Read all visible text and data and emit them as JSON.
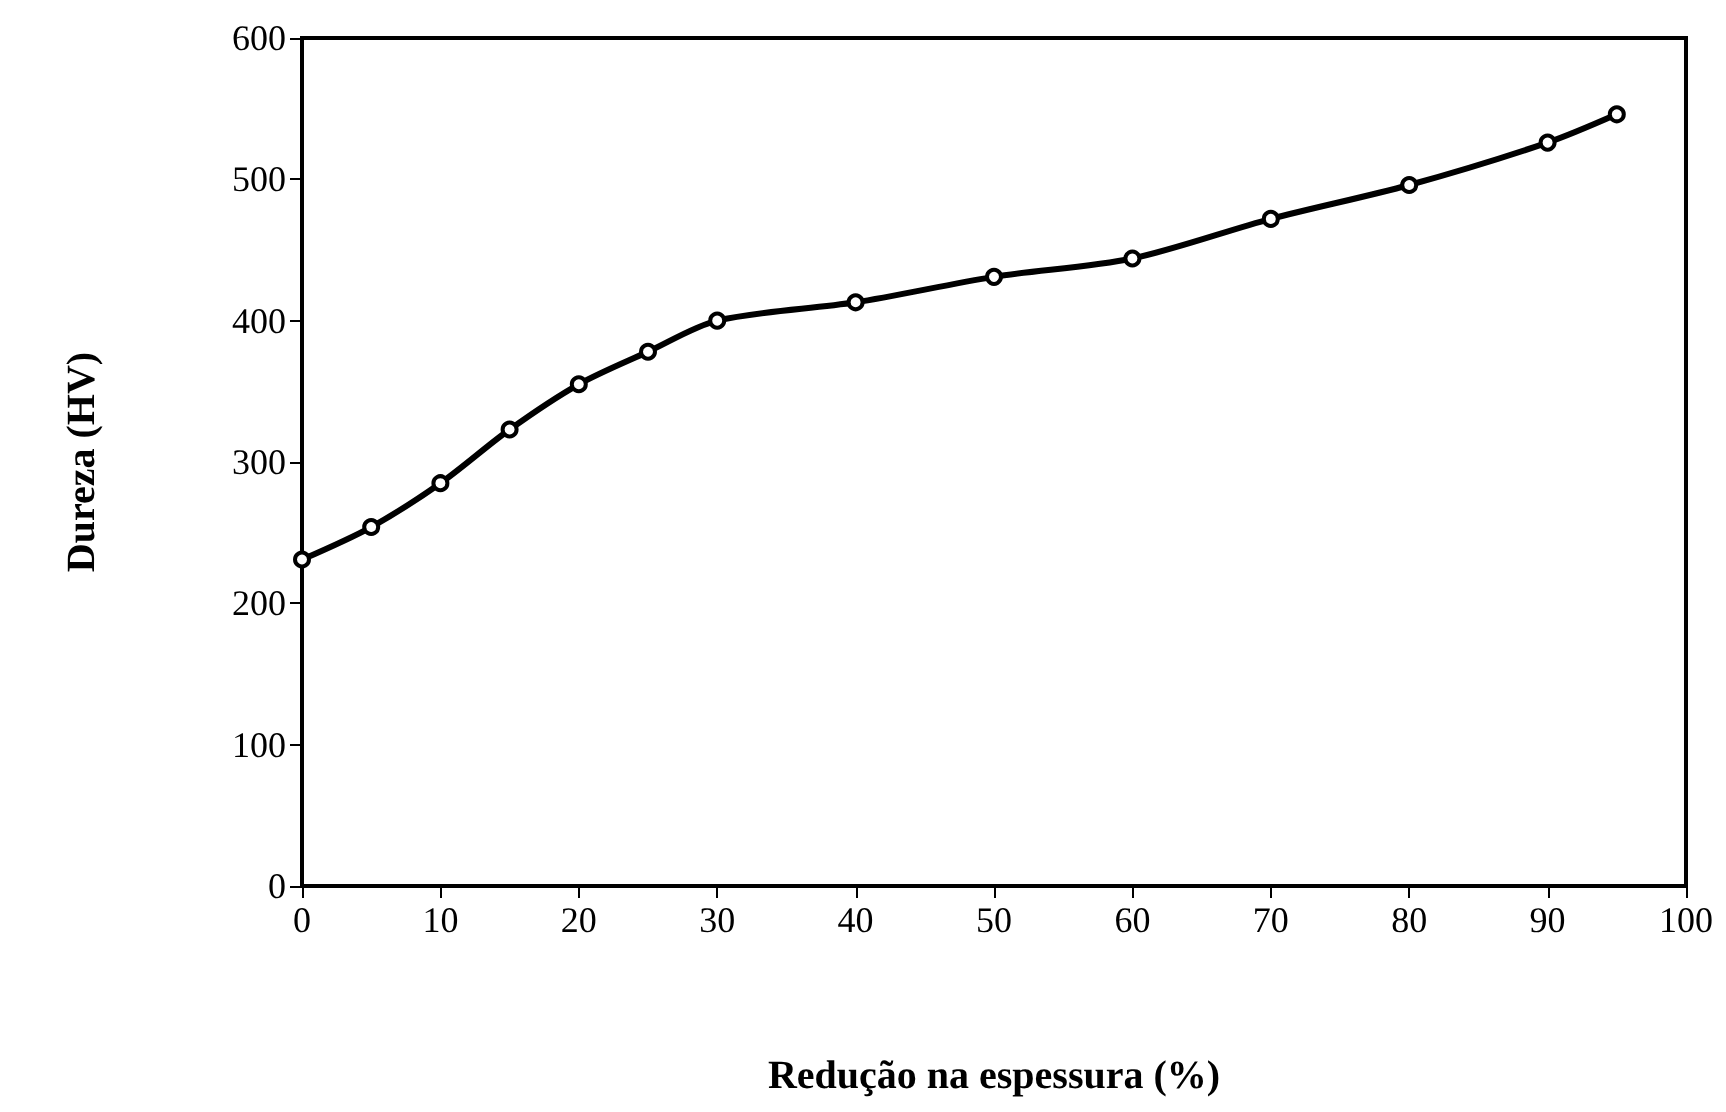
{
  "chart_data": {
    "type": "line",
    "xlabel": "Redução na espessura (%)",
    "ylabel": "Dureza (HV)",
    "x": [
      0,
      5,
      10,
      15,
      20,
      25,
      30,
      40,
      50,
      60,
      70,
      80,
      90,
      95
    ],
    "series": [
      {
        "color": "#000000",
        "values": [
          231,
          254,
          285,
          323,
          355,
          378,
          400,
          413,
          431,
          444,
          472,
          496,
          526,
          546
        ]
      }
    ],
    "xlim": [
      0,
      100
    ],
    "xticks": [
      0,
      10,
      20,
      30,
      40,
      50,
      60,
      70,
      80,
      90,
      100
    ],
    "ylim": [
      0,
      600
    ],
    "yticks": [
      0,
      100,
      200,
      300,
      400,
      500,
      600
    ],
    "grid": false,
    "marker": "circle",
    "line_style": "solid"
  }
}
